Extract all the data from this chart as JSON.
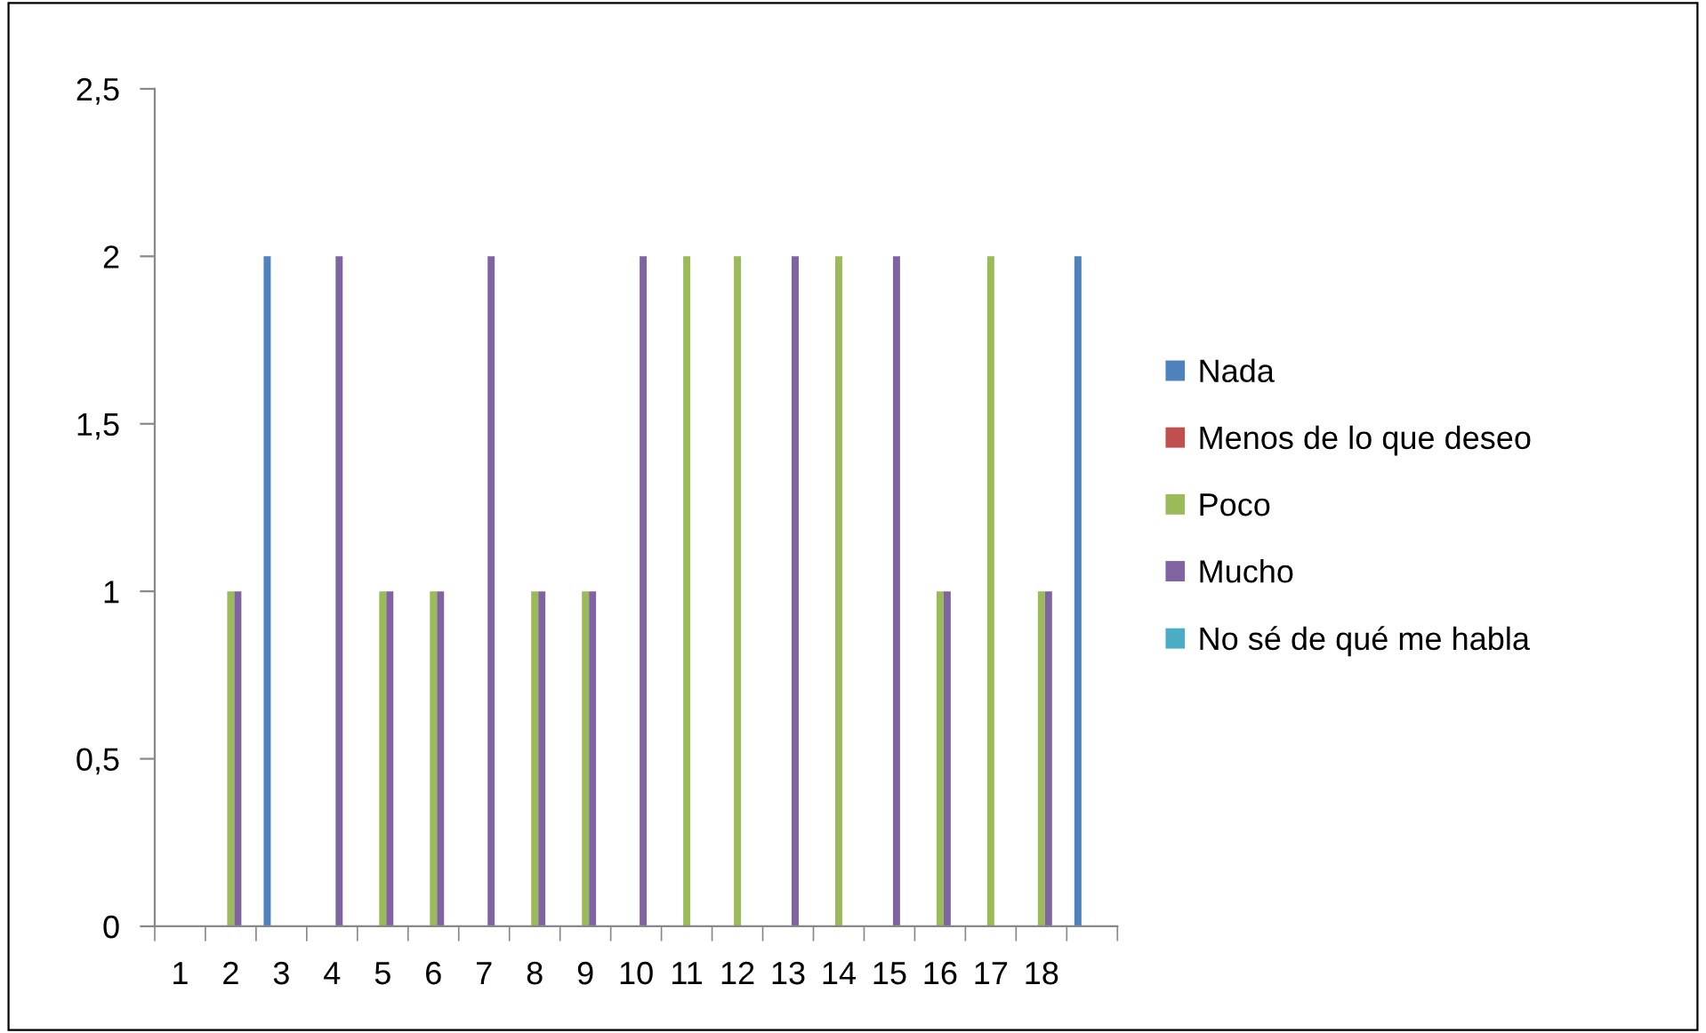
{
  "chart_data": {
    "type": "bar",
    "categories": [
      "1",
      "2",
      "3",
      "4",
      "5",
      "6",
      "7",
      "8",
      "9",
      "10",
      "11",
      "12",
      "13",
      "14",
      "15",
      "16",
      "17",
      "18",
      null
    ],
    "series": [
      {
        "name": "Nada",
        "color": "#4f81bd",
        "values": [
          null,
          null,
          2,
          null,
          null,
          null,
          null,
          null,
          null,
          null,
          null,
          null,
          null,
          null,
          null,
          null,
          null,
          null,
          2
        ]
      },
      {
        "name": "Menos de lo que deseo",
        "color": "#c0504d",
        "values": [
          null,
          null,
          null,
          null,
          null,
          null,
          null,
          null,
          null,
          null,
          null,
          null,
          null,
          null,
          null,
          null,
          null,
          null,
          null
        ]
      },
      {
        "name": "Poco",
        "color": "#9bbb59",
        "values": [
          null,
          1,
          null,
          null,
          1,
          1,
          null,
          1,
          1,
          null,
          2,
          2,
          null,
          2,
          null,
          1,
          2,
          1,
          null
        ]
      },
      {
        "name": "Mucho",
        "color": "#8064a2",
        "values": [
          null,
          1,
          null,
          2,
          1,
          1,
          2,
          1,
          1,
          2,
          null,
          null,
          2,
          null,
          2,
          1,
          null,
          1,
          null
        ]
      },
      {
        "name": "No sé de qué me habla",
        "color": "#4bacc6",
        "values": [
          null,
          null,
          null,
          null,
          null,
          null,
          null,
          null,
          null,
          null,
          null,
          null,
          null,
          null,
          null,
          null,
          null,
          null,
          null
        ]
      }
    ],
    "ylim": [
      0,
      2.5
    ],
    "yticks": [
      0,
      {
        "value": 0.5,
        "label": "0,5"
      },
      1,
      {
        "value": 1.5,
        "label": "1,5"
      },
      2,
      {
        "value": 2.5,
        "label": "2,5"
      }
    ],
    "grid": false,
    "legend": "right"
  }
}
